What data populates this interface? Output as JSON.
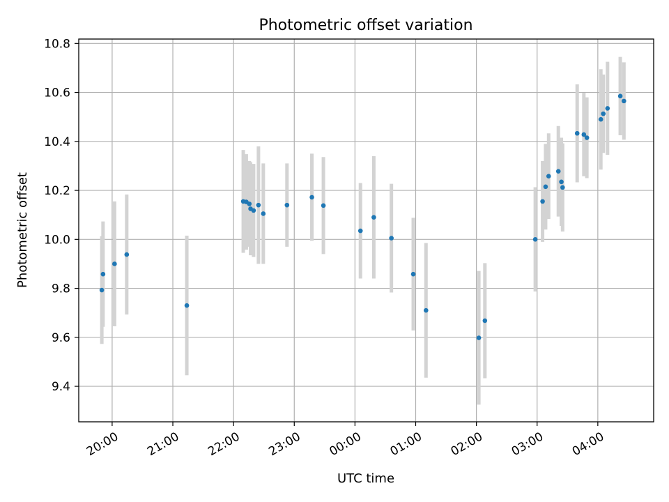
{
  "chart_data": {
    "type": "scatter",
    "title": "Photometric offset variation",
    "xlabel": "UTC time",
    "ylabel": "Photometric offset",
    "x_unit": "hours (UTC, continuing past midnight)",
    "xlim": [
      19.45,
      28.92
    ],
    "ylim": [
      9.255,
      10.818
    ],
    "grid": true,
    "xticks": [
      {
        "value": 20,
        "label": "20:00"
      },
      {
        "value": 21,
        "label": "21:00"
      },
      {
        "value": 22,
        "label": "22:00"
      },
      {
        "value": 23,
        "label": "23:00"
      },
      {
        "value": 24,
        "label": "00:00"
      },
      {
        "value": 25,
        "label": "01:00"
      },
      {
        "value": 26,
        "label": "02:00"
      },
      {
        "value": 27,
        "label": "03:00"
      },
      {
        "value": 28,
        "label": "04:00"
      }
    ],
    "yticks": [
      {
        "value": 9.4,
        "label": "9.4"
      },
      {
        "value": 9.6,
        "label": "9.6"
      },
      {
        "value": 9.8,
        "label": "9.8"
      },
      {
        "value": 10.0,
        "label": "10.0"
      },
      {
        "value": 10.2,
        "label": "10.2"
      },
      {
        "value": 10.4,
        "label": "10.4"
      },
      {
        "value": 10.6,
        "label": "10.6"
      },
      {
        "value": 10.8,
        "label": "10.8"
      }
    ],
    "point_color": "#1f77b4",
    "errorbar_color": "#d3d3d3",
    "points": [
      {
        "x": 19.83,
        "y": 9.793,
        "err": 0.22
      },
      {
        "x": 19.85,
        "y": 9.858,
        "err": 0.215
      },
      {
        "x": 20.04,
        "y": 9.9,
        "err": 0.255
      },
      {
        "x": 20.24,
        "y": 9.938,
        "err": 0.245
      },
      {
        "x": 21.23,
        "y": 9.73,
        "err": 0.285
      },
      {
        "x": 22.16,
        "y": 10.155,
        "err": 0.21
      },
      {
        "x": 22.21,
        "y": 10.153,
        "err": 0.195
      },
      {
        "x": 22.26,
        "y": 10.145,
        "err": 0.175
      },
      {
        "x": 22.28,
        "y": 10.125,
        "err": 0.19
      },
      {
        "x": 22.33,
        "y": 10.118,
        "err": 0.19
      },
      {
        "x": 22.41,
        "y": 10.14,
        "err": 0.24
      },
      {
        "x": 22.49,
        "y": 10.105,
        "err": 0.205
      },
      {
        "x": 22.88,
        "y": 10.14,
        "err": 0.17
      },
      {
        "x": 23.29,
        "y": 10.172,
        "err": 0.178
      },
      {
        "x": 23.48,
        "y": 10.138,
        "err": 0.198
      },
      {
        "x": 24.09,
        "y": 10.035,
        "err": 0.195
      },
      {
        "x": 24.31,
        "y": 10.09,
        "err": 0.25
      },
      {
        "x": 24.6,
        "y": 10.005,
        "err": 0.222
      },
      {
        "x": 24.96,
        "y": 9.858,
        "err": 0.23
      },
      {
        "x": 25.17,
        "y": 9.71,
        "err": 0.275
      },
      {
        "x": 26.04,
        "y": 9.598,
        "err": 0.273
      },
      {
        "x": 26.14,
        "y": 9.668,
        "err": 0.235
      },
      {
        "x": 26.97,
        "y": 10.0,
        "err": 0.213
      },
      {
        "x": 27.09,
        "y": 10.155,
        "err": 0.165
      },
      {
        "x": 27.14,
        "y": 10.215,
        "err": 0.175
      },
      {
        "x": 27.19,
        "y": 10.258,
        "err": 0.175
      },
      {
        "x": 27.35,
        "y": 10.278,
        "err": 0.185
      },
      {
        "x": 27.4,
        "y": 10.235,
        "err": 0.18
      },
      {
        "x": 27.42,
        "y": 10.212,
        "err": 0.18
      },
      {
        "x": 27.66,
        "y": 10.433,
        "err": 0.2
      },
      {
        "x": 27.77,
        "y": 10.428,
        "err": 0.17
      },
      {
        "x": 27.82,
        "y": 10.415,
        "err": 0.165
      },
      {
        "x": 28.05,
        "y": 10.49,
        "err": 0.205
      },
      {
        "x": 28.09,
        "y": 10.513,
        "err": 0.16
      },
      {
        "x": 28.16,
        "y": 10.535,
        "err": 0.19
      },
      {
        "x": 28.37,
        "y": 10.585,
        "err": 0.16
      },
      {
        "x": 28.43,
        "y": 10.565,
        "err": 0.158
      }
    ]
  }
}
